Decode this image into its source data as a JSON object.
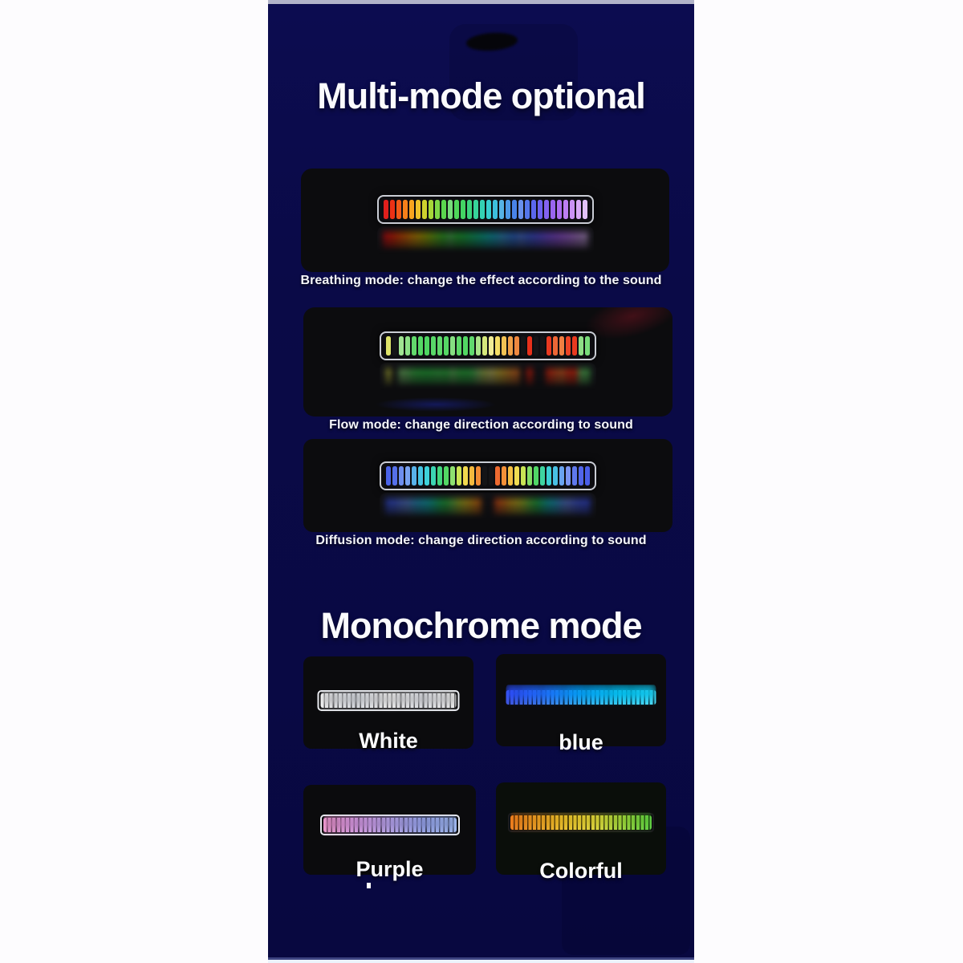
{
  "headings": {
    "multi_mode": "Multi-mode optional",
    "monochrome": "Monochrome mode"
  },
  "modes": [
    {
      "caption": "Breathing mode: change the effect according to the sound",
      "leds": [
        "#e01f1c",
        "#ec3115",
        "#f25a18",
        "#f57f1a",
        "#f8a51e",
        "#eec32a",
        "#cdd02e",
        "#a6d838",
        "#7ed846",
        "#5ad64e",
        "#76dc7a",
        "#4ed659",
        "#43d463",
        "#3dd37d",
        "#37d399",
        "#33d1b3",
        "#37cecf",
        "#3dbfdc",
        "#56b3e5",
        "#4d99e7",
        "#4983e9",
        "#6991ed",
        "#5476eb",
        "#5b67ed",
        "#6d62ef",
        "#8462ef",
        "#9965ef",
        "#ac6ef1",
        "#bc7ef3",
        "#ca91f5",
        "#d8a9f7",
        "#e2c1f9"
      ]
    },
    {
      "caption": "Flow mode: change direction according to sound",
      "leds": [
        "#dde26a",
        "off",
        "#a0e492",
        "#8ce086",
        "#62da6c",
        "#55d865",
        "#4ed662",
        "#58d868",
        "#60d96c",
        "#55d765",
        "#86df82",
        "#5cd868",
        "#52d763",
        "#60d96e",
        "#aae48a",
        "#d6e87c",
        "#f0ec96",
        "#f4de66",
        "#f2c254",
        "#f0a048",
        "#ee8840",
        "off",
        "#e7301b",
        "off",
        "off",
        "#e93920",
        "#ed6636",
        "#ef7f42",
        "#eb4325",
        "#e83a1f",
        "#8ede86",
        "#78dc7a"
      ]
    },
    {
      "caption": "Diffusion mode: change direction according to sound",
      "leds": [
        "#4a63e8",
        "#5570ea",
        "#6e8eee",
        "#79a2f0",
        "#58b2ea",
        "#46c4e2",
        "#3ed2da",
        "#3cd4b2",
        "#44d67e",
        "#52d764",
        "#8ee070",
        "#cbe455",
        "#f0d84e",
        "#f4b93e",
        "#f28c35",
        "off",
        "off",
        "#ee6a30",
        "#f29038",
        "#f4c044",
        "#f0dc52",
        "#c8e455",
        "#84de66",
        "#50d766",
        "#3ed4a0",
        "#3ccfd4",
        "#48c0e4",
        "#6aa4f0",
        "#7c96f2",
        "#5f78ec",
        "#5266ea",
        "#4a5ee8"
      ]
    }
  ],
  "mono": [
    {
      "label": "White",
      "stops": [
        "#ffffff",
        "#eef1f6",
        "#ffffff",
        "#f2f4f8",
        "#ffffff"
      ]
    },
    {
      "label": "blue",
      "stops": [
        "#4156d8",
        "#3f7ce6",
        "#38aeee",
        "#3ecef2",
        "#55dcf6"
      ]
    },
    {
      "label": "Purple",
      "stops": [
        "#f2a2d4",
        "#e2aaee",
        "#c4b2f4",
        "#a8b4f6",
        "#aec6fa"
      ]
    },
    {
      "label": "Colorful",
      "stops": [
        "#ee8226",
        "#f0a830",
        "#f2cc3a",
        "#e6de48",
        "#a4dc48",
        "#66d64c"
      ]
    }
  ],
  "colors": {
    "poster_background": "#0a0a47",
    "photo_card_black": "#0c0c0e",
    "text": "#ffffff",
    "top_edge_strip": "#b2b4c9",
    "bottom_edge_strip": "#ecf3fc"
  }
}
